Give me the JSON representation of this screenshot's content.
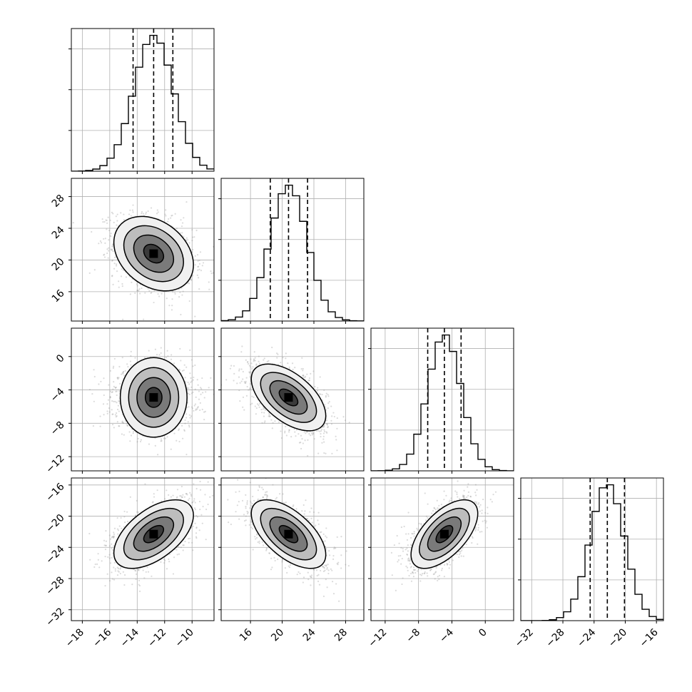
{
  "chart_data": {
    "type": "corner",
    "params": [
      {
        "index": 0,
        "median": -12.8,
        "q16": -14.3,
        "q84": -11.4,
        "sd": 1.45,
        "range": [
          -18.8,
          -8.4
        ],
        "ticks": [
          -18,
          -16,
          -14,
          -12,
          -10
        ]
      },
      {
        "index": 1,
        "median": 20.8,
        "q16": 18.5,
        "q84": 23.2,
        "sd": 2.35,
        "range": [
          12.3,
          30.3
        ],
        "ticks": [
          16,
          20,
          24,
          28
        ]
      },
      {
        "index": 2,
        "median": -4.9,
        "q16": -6.9,
        "q84": -2.9,
        "sd": 2.0,
        "range": [
          -13.7,
          3.4
        ],
        "ticks": [
          -12,
          -8,
          -4,
          0
        ]
      },
      {
        "index": 3,
        "median": -22.3,
        "q16": -24.5,
        "q84": -20.1,
        "sd": 2.2,
        "range": [
          -33.4,
          -15.1
        ],
        "ticks": [
          -32,
          -28,
          -24,
          -20,
          -16
        ]
      }
    ],
    "correlations": [
      {
        "pair": [
          0,
          1
        ],
        "r": -0.3
      },
      {
        "pair": [
          0,
          2
        ],
        "r": 0.0
      },
      {
        "pair": [
          0,
          3
        ],
        "r": 0.55
      },
      {
        "pair": [
          1,
          2
        ],
        "r": -0.55
      },
      {
        "pair": [
          1,
          3
        ],
        "r": -0.6
      },
      {
        "pair": [
          2,
          3
        ],
        "r": 0.6
      }
    ],
    "histogram_bins": 20,
    "contour_levels_sigma": [
      0.5,
      1.0,
      1.5,
      2.0
    ],
    "grid": true,
    "quantile_lines": "dashed"
  }
}
